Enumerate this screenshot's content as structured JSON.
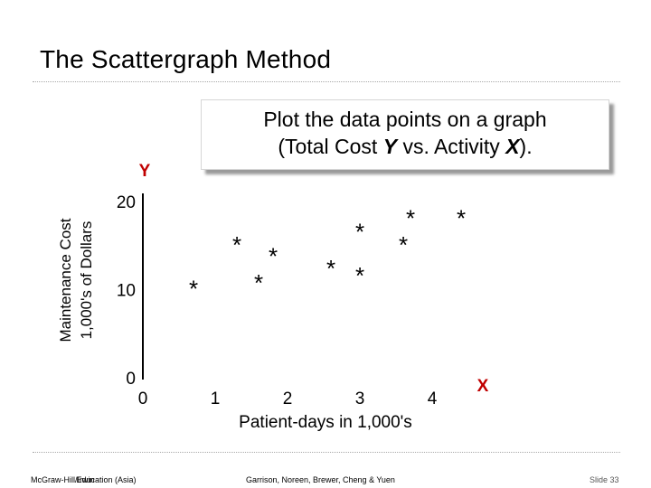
{
  "slide": {
    "title": "The Scattergraph Method",
    "callout": {
      "line1": "Plot the data points on a graph",
      "line2_before": "(Total Cost ",
      "line2_y": "Y",
      "line2_mid": " vs. Activity ",
      "line2_x": "X",
      "line2_after": ")."
    },
    "footer": {
      "left": "McGraw-Hill/Irwin",
      "left_overlap": "Education (Asia)",
      "center": "Garrison, Noreen, Brewer, Cheng & Yuen",
      "right": "Slide 33"
    }
  },
  "chart_data": {
    "type": "scatter",
    "marker": "*",
    "y_axis_letter": "Y",
    "x_axis_letter": "X",
    "ylabel_line1": "Maintenance Cost",
    "ylabel_line2": "1,000's of Dollars",
    "xlabel": "Patient-days in 1,000's",
    "y_ticks": [
      {
        "value": 0,
        "label": "0"
      },
      {
        "value": 10,
        "label": "10"
      },
      {
        "value": 20,
        "label": "20"
      }
    ],
    "x_ticks": [
      {
        "value": 0,
        "label": "0"
      },
      {
        "value": 1,
        "label": "1"
      },
      {
        "value": 2,
        "label": "2"
      },
      {
        "value": 3,
        "label": "3"
      },
      {
        "value": 4,
        "label": "4"
      }
    ],
    "xlim": [
      0,
      4.8
    ],
    "ylim": [
      0,
      22
    ],
    "grid": false,
    "points": [
      {
        "x": 0.7,
        "y": 10.5
      },
      {
        "x": 1.3,
        "y": 15.5
      },
      {
        "x": 1.6,
        "y": 11.2
      },
      {
        "x": 1.8,
        "y": 14.2
      },
      {
        "x": 2.6,
        "y": 12.8
      },
      {
        "x": 3.0,
        "y": 17.0
      },
      {
        "x": 3.0,
        "y": 12.0
      },
      {
        "x": 3.6,
        "y": 15.5
      },
      {
        "x": 3.7,
        "y": 18.5
      },
      {
        "x": 4.4,
        "y": 18.5
      }
    ]
  }
}
